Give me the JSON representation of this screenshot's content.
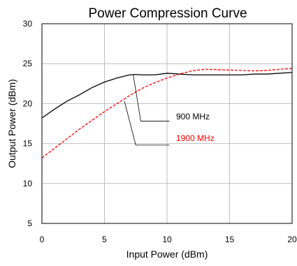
{
  "chart_data": {
    "type": "line",
    "title": "Power Compression Curve",
    "xlabel": "Input Power (dBm)",
    "ylabel": "Output Power (dBm)",
    "xlim": [
      0,
      20
    ],
    "ylim": [
      5,
      30
    ],
    "xticks": [
      0,
      5,
      10,
      15,
      20
    ],
    "yticks": [
      5,
      10,
      15,
      20,
      25,
      30
    ],
    "grid": true,
    "series": [
      {
        "name": "900 MHz",
        "color": "#000000",
        "dash": "solid",
        "x": [
          0,
          1,
          2,
          3,
          4,
          5,
          6,
          7,
          7.5,
          8,
          9,
          10,
          11,
          12,
          13,
          14,
          15,
          16,
          17,
          18,
          19,
          20
        ],
        "y": [
          18.2,
          19.3,
          20.3,
          21.1,
          22.0,
          22.7,
          23.2,
          23.6,
          23.65,
          23.6,
          23.6,
          23.8,
          23.7,
          23.6,
          23.6,
          23.6,
          23.6,
          23.6,
          23.7,
          23.7,
          23.8,
          23.9
        ]
      },
      {
        "name": "1900 MHz",
        "color": "#ff0000",
        "dash": "dashed",
        "x": [
          0,
          1,
          2,
          3,
          4,
          5,
          6,
          7,
          8,
          9,
          10,
          11,
          12,
          13,
          14,
          15,
          16,
          17,
          18,
          19,
          20
        ],
        "y": [
          13.2,
          14.4,
          15.6,
          16.8,
          17.9,
          19.0,
          20.0,
          21.0,
          21.9,
          22.6,
          23.2,
          23.7,
          24.1,
          24.3,
          24.25,
          24.2,
          24.15,
          24.1,
          24.15,
          24.3,
          24.4
        ]
      }
    ],
    "legend": {
      "placement": "annotations",
      "entries": [
        {
          "label": "900 MHz",
          "color": "#000000"
        },
        {
          "label": "1900 MHz",
          "color": "#ff0000"
        }
      ]
    }
  }
}
